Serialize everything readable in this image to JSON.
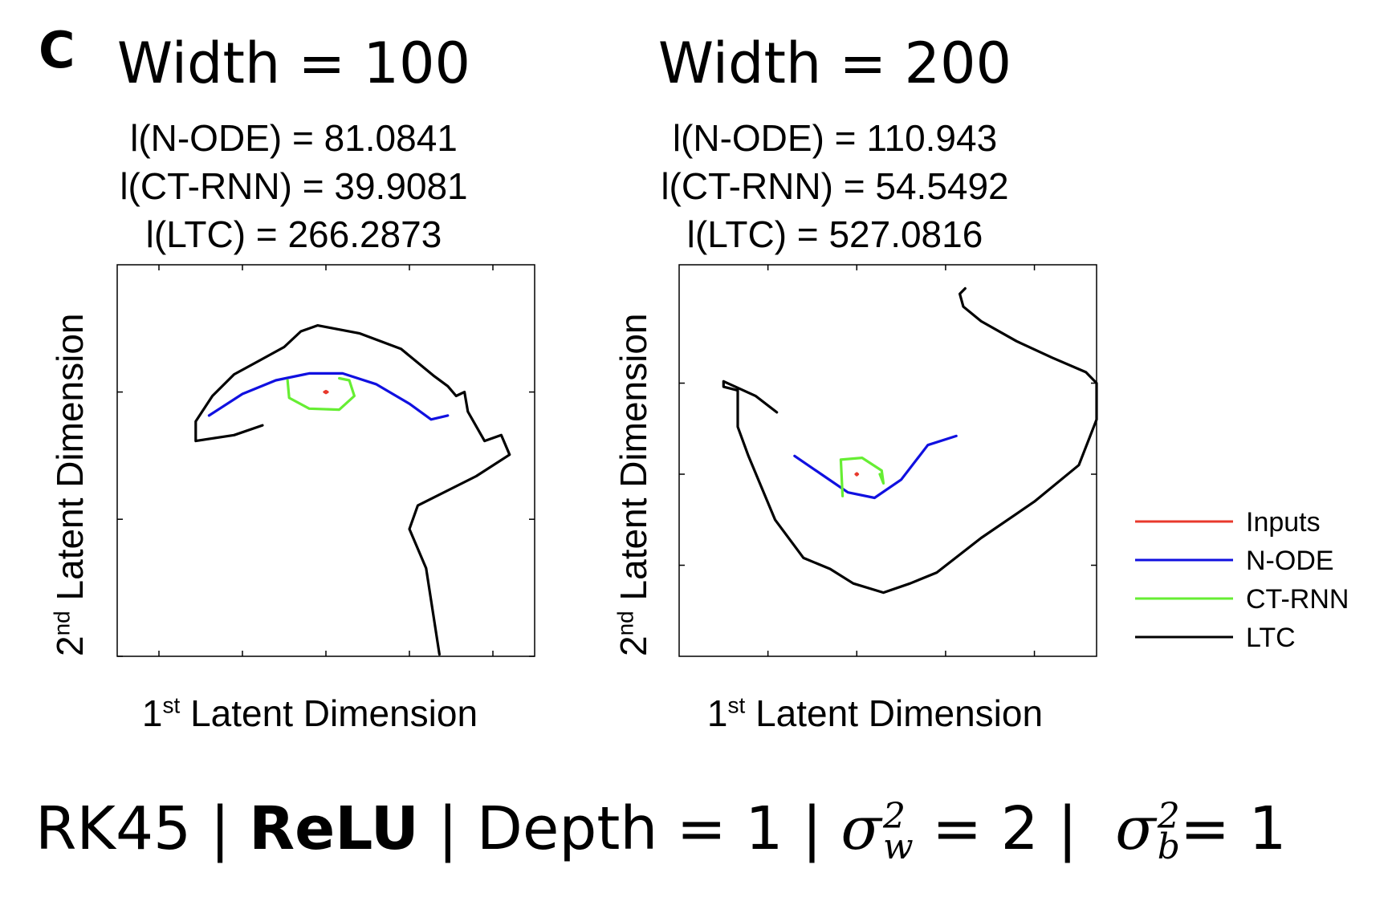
{
  "panel_label": "C",
  "chart_data": [
    {
      "type": "line",
      "title": "Width = 100",
      "metrics": [
        "l(N-ODE) = 81.0841",
        "l(CT-RNN) = 39.9081",
        "l(LTC) = 266.2873"
      ],
      "xlabel": {
        "prefix": "1",
        "sup": "st",
        "text": " Latent Dimension"
      },
      "ylabel": {
        "prefix": "2",
        "sup": "nd",
        "text": " Latent Dimension"
      },
      "series": [
        {
          "name": "Inputs",
          "color": "#e8392c",
          "points": [
            [
              0,
              -0.05
            ],
            [
              0.1,
              0
            ],
            [
              0,
              0.05
            ],
            [
              -0.1,
              0
            ],
            [
              0,
              -0.05
            ]
          ]
        },
        {
          "name": "N-ODE",
          "color": "#1010e0",
          "points": [
            [
              -7,
              -1.2
            ],
            [
              -5,
              -0.1
            ],
            [
              -3,
              0.6
            ],
            [
              -1,
              0.95
            ],
            [
              1,
              0.95
            ],
            [
              3,
              0.4
            ],
            [
              5,
              -0.6
            ],
            [
              6.3,
              -1.4
            ],
            [
              7.3,
              -1.2
            ]
          ]
        },
        {
          "name": "CT-RNN",
          "color": "#66ee33",
          "points": [
            [
              -2.3,
              0.6
            ],
            [
              -2.2,
              -0.3
            ],
            [
              -1,
              -0.85
            ],
            [
              0.8,
              -0.9
            ],
            [
              1.7,
              -0.2
            ],
            [
              1.4,
              0.6
            ],
            [
              0.8,
              0.7
            ]
          ]
        },
        {
          "name": "LTC",
          "color": "#000000",
          "points": [
            [
              -3.8,
              -1.7
            ],
            [
              -5.5,
              -2.2
            ],
            [
              -7.8,
              -2.5
            ],
            [
              -7.8,
              -1.5
            ],
            [
              -6.8,
              -0.2
            ],
            [
              -5.5,
              0.9
            ],
            [
              -4,
              1.6
            ],
            [
              -2.5,
              2.3
            ],
            [
              -1.5,
              3.1
            ],
            [
              -0.5,
              3.4
            ],
            [
              2,
              3.0
            ],
            [
              4.5,
              2.2
            ],
            [
              6.5,
              0.8
            ],
            [
              7.3,
              0.3
            ],
            [
              7.8,
              -0.2
            ],
            [
              8.3,
              0
            ],
            [
              8.5,
              -1.0
            ],
            [
              9.5,
              -2.5
            ],
            [
              10.5,
              -2.2
            ],
            [
              11,
              -3.2
            ],
            [
              9,
              -4.3
            ],
            [
              5.5,
              -5.8
            ],
            [
              5,
              -7
            ],
            [
              6,
              -9
            ],
            [
              6.8,
              -13.4
            ]
          ]
        }
      ],
      "xlim": [
        -12.5,
        12.5
      ],
      "ylim": [
        -13.5,
        6.5
      ],
      "xticks": [
        -10,
        -5,
        0,
        5,
        10
      ],
      "yticks": [
        -13.5,
        -6.5,
        0
      ]
    },
    {
      "type": "line",
      "title": "Width = 200",
      "metrics": [
        "l(N-ODE) = 110.943",
        "l(CT-RNN) = 54.5492",
        "l(LTC) = 527.0816"
      ],
      "xlabel": {
        "prefix": "1",
        "sup": "st",
        "text": " Latent Dimension"
      },
      "ylabel": {
        "prefix": "2",
        "sup": "nd",
        "text": " Latent Dimension"
      },
      "series": [
        {
          "name": "Inputs",
          "color": "#e8392c",
          "points": [
            [
              0,
              -0.05
            ],
            [
              0.06,
              0
            ],
            [
              0,
              0.05
            ],
            [
              -0.06,
              0
            ],
            [
              0,
              -0.05
            ]
          ]
        },
        {
          "name": "N-ODE",
          "color": "#1010e0",
          "points": [
            [
              -3.5,
              1
            ],
            [
              -2,
              0
            ],
            [
              -0.5,
              -1
            ],
            [
              1,
              -1.3
            ],
            [
              2.5,
              -0.3
            ],
            [
              4,
              1.6
            ],
            [
              5.6,
              2.1
            ]
          ]
        },
        {
          "name": "CT-RNN",
          "color": "#66ee33",
          "points": [
            [
              -0.8,
              -1.2
            ],
            [
              -0.9,
              0.8
            ],
            [
              0.3,
              0.9
            ],
            [
              1.4,
              0.2
            ],
            [
              1.5,
              -0.5
            ],
            [
              1.3,
              0
            ]
          ]
        },
        {
          "name": "LTC",
          "color": "#000000",
          "points": [
            [
              -4.5,
              3.4
            ],
            [
              -5.7,
              4.3
            ],
            [
              -7.5,
              5.1
            ],
            [
              -7.5,
              4.8
            ],
            [
              -6.7,
              4.6
            ],
            [
              -6.7,
              2.6
            ],
            [
              -6.1,
              1.0
            ],
            [
              -4.6,
              -2.5
            ],
            [
              -3,
              -4.6
            ],
            [
              -1.5,
              -5.2
            ],
            [
              -0.2,
              -6.0
            ],
            [
              1.5,
              -6.5
            ],
            [
              3,
              -6.0
            ],
            [
              4.5,
              -5.4
            ],
            [
              7,
              -3.5
            ],
            [
              10,
              -1.5
            ],
            [
              12.5,
              0.5
            ],
            [
              13.5,
              3.0
            ],
            [
              13.5,
              5.0
            ],
            [
              12.9,
              5.6
            ],
            [
              11,
              6.4
            ],
            [
              9,
              7.3
            ],
            [
              7,
              8.4
            ],
            [
              6,
              9.2
            ],
            [
              5.8,
              9.9
            ],
            [
              6.1,
              10.2
            ]
          ]
        }
      ],
      "xlim": [
        -10,
        13.5
      ],
      "ylim": [
        -10,
        11.5
      ],
      "xticks": [
        -5,
        0,
        5,
        10
      ],
      "yticks": [
        -5,
        0,
        5
      ]
    }
  ],
  "legend": [
    "Inputs",
    "N-ODE",
    "CT-RNN",
    "LTC"
  ],
  "footer": {
    "method": "RK45",
    "sep": "|",
    "activation": "ReLU",
    "depth": "Depth = 1",
    "sw_sym": "σ",
    "sw_sup": "2",
    "sw_sub": "w",
    "sw_val": "= 2",
    "sb_sym": "σ",
    "sb_sup": "2",
    "sb_sub": "b",
    "sb_val": "= 1"
  }
}
